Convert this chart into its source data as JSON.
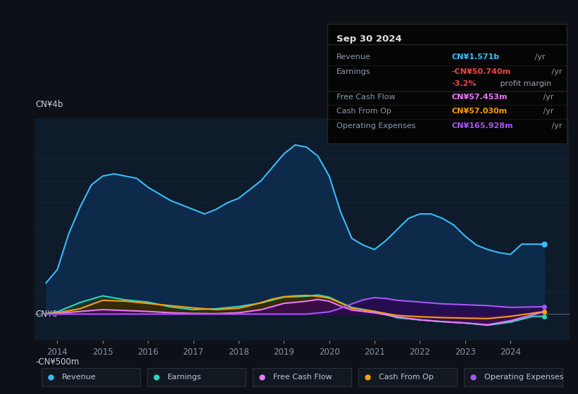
{
  "bg_color": "#0d1117",
  "plot_bg_color": "#0d1b2a",
  "info_box": {
    "title": "Sep 30 2024",
    "rows": [
      {
        "label": "Revenue",
        "value": "CN¥1.571b",
        "suffix": " /yr",
        "color": "#38bdf8"
      },
      {
        "label": "Earnings",
        "value": "-CN¥50.740m",
        "suffix": " /yr",
        "color": "#ef4444"
      },
      {
        "label": "",
        "value": "-3.2%",
        "suffix": " profit margin",
        "color": "#ef4444",
        "suffix_color": "#9ca3af"
      },
      {
        "label": "Free Cash Flow",
        "value": "CN¥57.453m",
        "suffix": " /yr",
        "color": "#e879f9"
      },
      {
        "label": "Cash From Op",
        "value": "CN¥57.030m",
        "suffix": " /yr",
        "color": "#f59e0b"
      },
      {
        "label": "Operating Expenses",
        "value": "CN¥165.928m",
        "suffix": " /yr",
        "color": "#a855f7"
      }
    ]
  },
  "ylabel_top": "CN¥4b",
  "ylabel_zero": "CN¥0",
  "ylabel_bottom": "-CN¥500m",
  "ylim": [
    -600,
    4400
  ],
  "xlim": [
    2013.5,
    2025.3
  ],
  "x_ticks": [
    2014,
    2015,
    2016,
    2017,
    2018,
    2019,
    2020,
    2021,
    2022,
    2023,
    2024
  ],
  "revenue": {
    "x": [
      2013.75,
      2014.0,
      2014.25,
      2014.5,
      2014.75,
      2015.0,
      2015.25,
      2015.5,
      2015.75,
      2016.0,
      2016.25,
      2016.5,
      2016.75,
      2017.0,
      2017.25,
      2017.5,
      2017.75,
      2018.0,
      2018.25,
      2018.5,
      2018.75,
      2019.0,
      2019.25,
      2019.5,
      2019.75,
      2020.0,
      2020.25,
      2020.5,
      2020.75,
      2021.0,
      2021.25,
      2021.5,
      2021.75,
      2022.0,
      2022.25,
      2022.5,
      2022.75,
      2023.0,
      2023.25,
      2023.5,
      2023.75,
      2024.0,
      2024.25,
      2024.5,
      2024.75
    ],
    "y": [
      700,
      1000,
      1800,
      2400,
      2900,
      3100,
      3150,
      3100,
      3050,
      2850,
      2700,
      2550,
      2450,
      2350,
      2250,
      2350,
      2500,
      2600,
      2800,
      3000,
      3300,
      3600,
      3800,
      3750,
      3550,
      3100,
      2300,
      1700,
      1550,
      1450,
      1650,
      1900,
      2150,
      2250,
      2250,
      2150,
      2000,
      1750,
      1550,
      1450,
      1380,
      1340,
      1571,
      1571,
      1571
    ],
    "color": "#38bdf8",
    "fill_color": "#0d2a4a",
    "label": "Revenue"
  },
  "earnings": {
    "x": [
      2013.75,
      2014.0,
      2014.5,
      2015.0,
      2015.5,
      2016.0,
      2016.5,
      2017.0,
      2017.5,
      2018.0,
      2018.5,
      2019.0,
      2019.5,
      2019.75,
      2020.0,
      2020.25,
      2020.5,
      2021.0,
      2021.5,
      2022.0,
      2022.5,
      2023.0,
      2023.5,
      2024.0,
      2024.5,
      2024.75
    ],
    "y": [
      5,
      50,
      260,
      410,
      320,
      270,
      160,
      100,
      120,
      170,
      250,
      380,
      400,
      430,
      380,
      260,
      150,
      60,
      -80,
      -130,
      -170,
      -200,
      -250,
      -180,
      -51,
      -51
    ],
    "color": "#2dd4bf",
    "fill_color": "#1a3a2a",
    "label": "Earnings"
  },
  "cash_from_op": {
    "x": [
      2013.75,
      2014.0,
      2014.5,
      2015.0,
      2015.5,
      2016.0,
      2016.5,
      2017.0,
      2017.5,
      2018.0,
      2018.25,
      2018.5,
      2018.75,
      2019.0,
      2019.25,
      2019.5,
      2019.75,
      2020.0,
      2020.25,
      2020.5,
      2021.0,
      2021.5,
      2022.0,
      2022.5,
      2023.0,
      2023.5,
      2024.0,
      2024.75
    ],
    "y": [
      10,
      30,
      120,
      310,
      290,
      240,
      190,
      140,
      100,
      130,
      190,
      260,
      340,
      390,
      410,
      420,
      400,
      360,
      250,
      130,
      60,
      -30,
      -60,
      -80,
      -90,
      -100,
      -50,
      57
    ],
    "color": "#f59e0b",
    "fill_color": "#3a2800",
    "label": "Cash From Op"
  },
  "fcf": {
    "x": [
      2013.75,
      2014.0,
      2014.5,
      2015.0,
      2015.5,
      2016.0,
      2016.5,
      2017.0,
      2017.5,
      2018.0,
      2018.5,
      2019.0,
      2019.5,
      2019.75,
      2020.0,
      2020.25,
      2020.5,
      2021.0,
      2021.5,
      2022.0,
      2022.5,
      2023.0,
      2023.5,
      2024.0,
      2024.75
    ],
    "y": [
      5,
      15,
      60,
      100,
      80,
      60,
      30,
      15,
      10,
      30,
      100,
      240,
      290,
      330,
      290,
      180,
      90,
      30,
      -60,
      -130,
      -170,
      -200,
      -240,
      -150,
      57
    ],
    "color": "#e879f9",
    "fill_color": "#3a0a50",
    "label": "Free Cash Flow"
  },
  "opex": {
    "x": [
      2013.75,
      2014.0,
      2016.0,
      2018.0,
      2019.0,
      2019.5,
      2020.0,
      2020.25,
      2020.5,
      2020.75,
      2021.0,
      2021.25,
      2021.5,
      2022.0,
      2022.5,
      2023.0,
      2023.5,
      2024.0,
      2024.75
    ],
    "y": [
      0,
      0,
      0,
      0,
      0,
      0,
      50,
      130,
      230,
      320,
      370,
      350,
      310,
      270,
      230,
      210,
      190,
      150,
      166
    ],
    "color": "#a855f7",
    "fill_color": "#2a0a50",
    "label": "Operating Expenses"
  },
  "grid_color": "#1a2e45",
  "zero_line_color": "#5a6578",
  "text_color": "#8892a4",
  "accent_color": "#c8d0dc",
  "legend_items": [
    {
      "label": "Revenue",
      "color": "#38bdf8"
    },
    {
      "label": "Earnings",
      "color": "#2dd4bf"
    },
    {
      "label": "Free Cash Flow",
      "color": "#e879f9"
    },
    {
      "label": "Cash From Op",
      "color": "#f59e0b"
    },
    {
      "label": "Operating Expenses",
      "color": "#a855f7"
    }
  ]
}
